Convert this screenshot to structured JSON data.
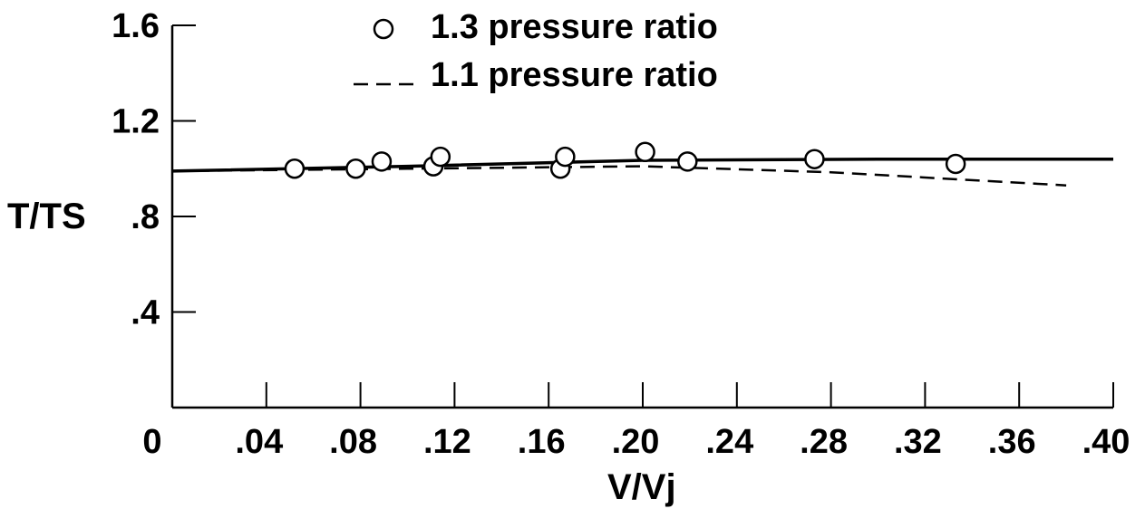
{
  "chart_data": {
    "type": "line",
    "xlabel": "V/Vj",
    "ylabel": "T/TS",
    "xlim": [
      0,
      0.4
    ],
    "ylim": [
      0,
      1.6
    ],
    "x_ticks": [
      0,
      0.04,
      0.08,
      0.12,
      0.16,
      0.2,
      0.24,
      0.28,
      0.32,
      0.36,
      0.4
    ],
    "x_tick_labels": [
      "0",
      ".04",
      ".08",
      ".12",
      ".16",
      ".20",
      ".24",
      ".28",
      ".32",
      ".36",
      ".40"
    ],
    "y_ticks": [
      0.4,
      0.8,
      1.2,
      1.6
    ],
    "y_tick_labels": [
      ".4",
      ".8",
      "1.2",
      "1.6"
    ],
    "grid": false,
    "legend_position": "top-center",
    "series": [
      {
        "name": "1.3 pressure ratio",
        "style": "markers",
        "marker": "open-circle",
        "points": [
          {
            "x": 0.052,
            "y": 1.0
          },
          {
            "x": 0.078,
            "y": 1.0
          },
          {
            "x": 0.089,
            "y": 1.03
          },
          {
            "x": 0.111,
            "y": 1.01
          },
          {
            "x": 0.114,
            "y": 1.05
          },
          {
            "x": 0.165,
            "y": 1.0
          },
          {
            "x": 0.167,
            "y": 1.05
          },
          {
            "x": 0.201,
            "y": 1.07
          },
          {
            "x": 0.219,
            "y": 1.03
          },
          {
            "x": 0.273,
            "y": 1.04
          },
          {
            "x": 0.333,
            "y": 1.02
          }
        ]
      },
      {
        "name": "1.3 pressure ratio (fit)",
        "legend": false,
        "style": "solid-line",
        "points": [
          {
            "x": 0.0,
            "y": 0.99
          },
          {
            "x": 0.1,
            "y": 1.01
          },
          {
            "x": 0.2,
            "y": 1.035
          },
          {
            "x": 0.3,
            "y": 1.04
          },
          {
            "x": 0.4,
            "y": 1.04
          }
        ]
      },
      {
        "name": "1.1 pressure ratio",
        "style": "dashed-line",
        "points": [
          {
            "x": 0.0,
            "y": 0.99
          },
          {
            "x": 0.1,
            "y": 1.0
          },
          {
            "x": 0.2,
            "y": 1.01
          },
          {
            "x": 0.28,
            "y": 0.985
          },
          {
            "x": 0.38,
            "y": 0.93
          }
        ]
      }
    ]
  }
}
